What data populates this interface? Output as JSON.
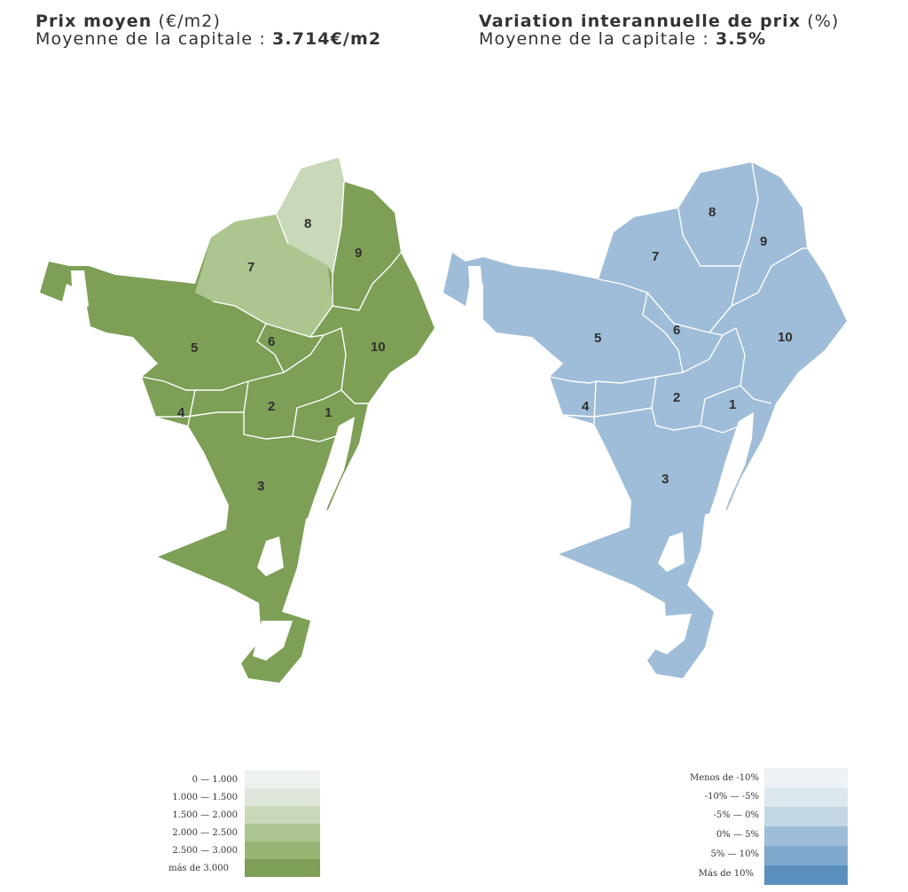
{
  "left_header": {
    "title_bold": "Prix moyen",
    "title_unit": "(€/m2)",
    "avg_prefix": "Moyenne de la capitale : ",
    "avg_value": "3.714€/m2"
  },
  "right_header": {
    "title_bold": "Variation interannuelle de prix",
    "title_unit": "(%)",
    "avg_prefix": "Moyenne de la capitale : ",
    "avg_value": "3.5%"
  },
  "district_labels": [
    "1",
    "2",
    "3",
    "4",
    "5",
    "6",
    "7",
    "8",
    "9",
    "10"
  ],
  "left_legend": [
    {
      "label": "0  —  1.000",
      "color": "#eef2ee"
    },
    {
      "label": "1.000  —  1.500",
      "color": "#e0e6dc"
    },
    {
      "label": "1.500  —  2.000",
      "color": "#c9d8b8"
    },
    {
      "label": "2.000  —  2.500",
      "color": "#adc58f"
    },
    {
      "label": "2.500  —  3.000",
      "color": "#98b574"
    },
    {
      "label": "más de 3.000",
      "color": "#7d9f56"
    }
  ],
  "right_legend": [
    {
      "label": "Menos de -10%",
      "color": "#eef2f4"
    },
    {
      "label": "-10%   —   -5%",
      "color": "#dde8ee"
    },
    {
      "label": "-5%   —   0%",
      "color": "#c3d6e4"
    },
    {
      "label": "0%   —   5%",
      "color": "#9fbdd8"
    },
    {
      "label": "5%   —   10%",
      "color": "#7ea8cc"
    },
    {
      "label": "Más de 10%",
      "color": "#5b8fbd"
    }
  ],
  "left_colors": {
    "base": "#7d9f56",
    "band_2000_2500": "#adc58f",
    "band_1500_2000": "#c9d8b8",
    "band_2500_3000": "#98b574"
  },
  "right_colors": {
    "base": "#9fbdd8"
  }
}
